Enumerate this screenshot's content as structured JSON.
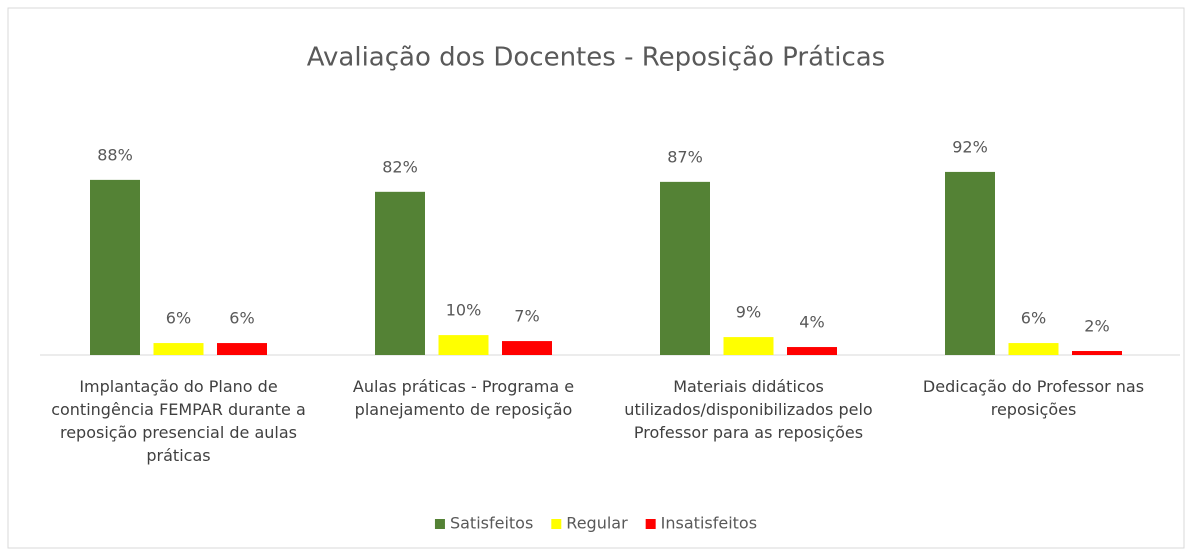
{
  "chart_data": {
    "type": "bar",
    "title": "Avaliação dos Docentes - Reposição Práticas",
    "categories": [
      "Implantação do Plano de contingência FEMPAR durante a reposição presencial de aulas práticas",
      "Aulas práticas - Programa e planejamento de reposição",
      "Materiais didáticos utilizados/disponibilizados pelo Professor para as reposições",
      "Dedicação do Professor nas reposições"
    ],
    "series": [
      {
        "name": "Satisfeitos",
        "color": "#548235",
        "values": [
          88,
          82,
          87,
          92
        ],
        "value_labels": [
          "88%",
          "82%",
          "87%",
          "92%"
        ]
      },
      {
        "name": "Regular",
        "color": "#ffff00",
        "values": [
          6,
          10,
          9,
          6
        ],
        "value_labels": [
          "6%",
          "10%",
          "9%",
          "6%"
        ]
      },
      {
        "name": "Insatisfeitos",
        "color": "#ff0000",
        "values": [
          6,
          7,
          4,
          2
        ],
        "value_labels": [
          "6%",
          "7%",
          "4%",
          "2%"
        ]
      }
    ],
    "ylim": [
      0,
      100
    ],
    "legend": "bottom"
  }
}
